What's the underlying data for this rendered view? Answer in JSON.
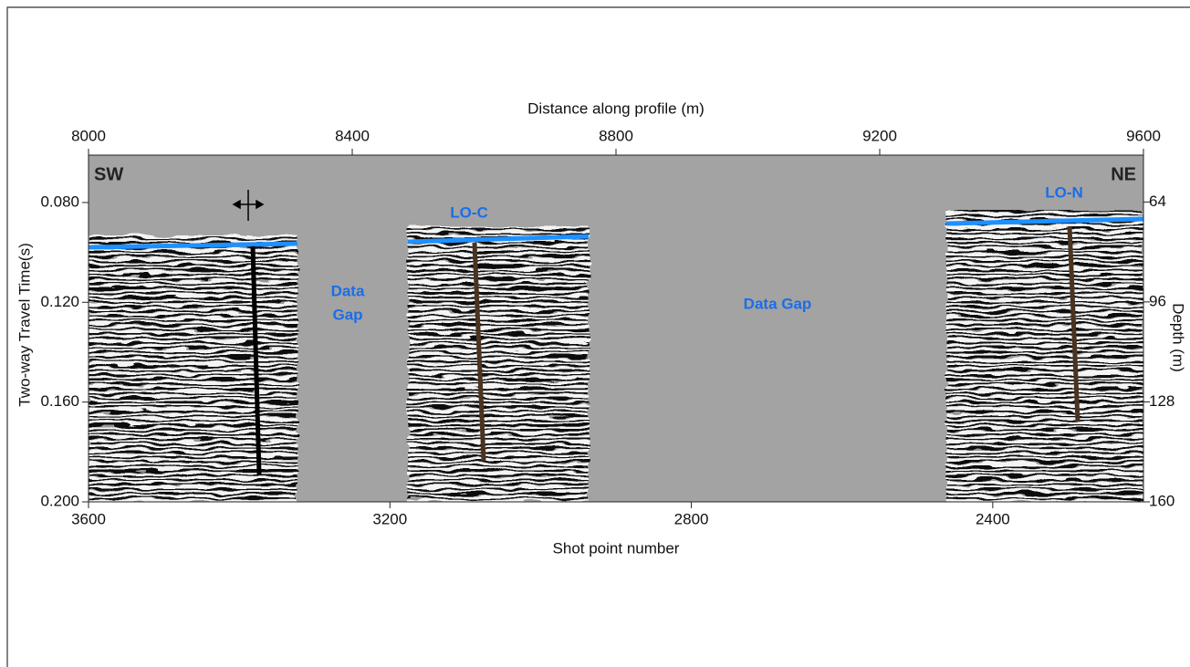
{
  "chart_data": {
    "type": "seismic-section",
    "xlabel": "Shot point number",
    "x2label": "Distance along profile (m)",
    "ylabel": "Two-way Travel Time(s)",
    "y2label": "Depth (m)",
    "xlim": [
      3600,
      2200
    ],
    "xticks": [
      3600,
      3200,
      2800,
      2400
    ],
    "x2lim": [
      8000,
      9600
    ],
    "x2ticks": [
      8000,
      8400,
      8800,
      9200,
      9600
    ],
    "ylim": [
      0.061,
      0.2
    ],
    "yticks": [
      {
        "value": 0.08,
        "label": "0.080"
      },
      {
        "value": 0.12,
        "label": "0.120"
      },
      {
        "value": 0.16,
        "label": "0.160"
      },
      {
        "value": 0.2,
        "label": "0.200"
      }
    ],
    "y2lim": [
      49,
      160
    ],
    "y2ticks": [
      64,
      96,
      128,
      160
    ],
    "annotations": [
      "SW",
      "NE",
      "LO-C",
      "LO-N",
      "Data",
      "Gap",
      "Data Gap"
    ]
  }
}
